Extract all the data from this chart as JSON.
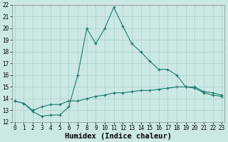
{
  "xlabel": "Humidex (Indice chaleur)",
  "x_values": [
    0,
    1,
    2,
    3,
    4,
    5,
    6,
    7,
    8,
    9,
    10,
    11,
    12,
    13,
    14,
    15,
    16,
    17,
    18,
    19,
    20,
    21,
    22,
    23
  ],
  "line1_y": [
    13.8,
    13.6,
    12.9,
    12.5,
    12.6,
    12.6,
    13.3,
    16.0,
    20.0,
    18.7,
    20.0,
    21.8,
    20.2,
    18.7,
    18.0,
    17.2,
    16.5,
    16.5,
    16.0,
    15.0,
    14.9,
    14.5,
    14.3,
    14.2
  ],
  "line2_y": [
    13.8,
    13.6,
    13.0,
    13.3,
    13.5,
    13.5,
    13.8,
    13.8,
    14.0,
    14.2,
    14.3,
    14.5,
    14.5,
    14.6,
    14.7,
    14.7,
    14.8,
    14.9,
    15.0,
    15.0,
    15.0,
    14.6,
    14.5,
    14.3
  ],
  "line_color": "#1a7a6e",
  "bg_color": "#cce8e4",
  "grid_color": "#aacfcc",
  "ylim": [
    12,
    22
  ],
  "xlim": [
    -0.3,
    23.3
  ],
  "yticks": [
    12,
    13,
    14,
    15,
    16,
    17,
    18,
    19,
    20,
    21,
    22
  ],
  "xticks": [
    0,
    1,
    2,
    3,
    4,
    5,
    6,
    7,
    8,
    9,
    10,
    11,
    12,
    13,
    14,
    15,
    16,
    17,
    18,
    19,
    20,
    21,
    22,
    23
  ],
  "tick_fontsize": 5.5,
  "xlabel_fontsize": 7.5,
  "marker_size": 3.5,
  "lw": 0.8
}
